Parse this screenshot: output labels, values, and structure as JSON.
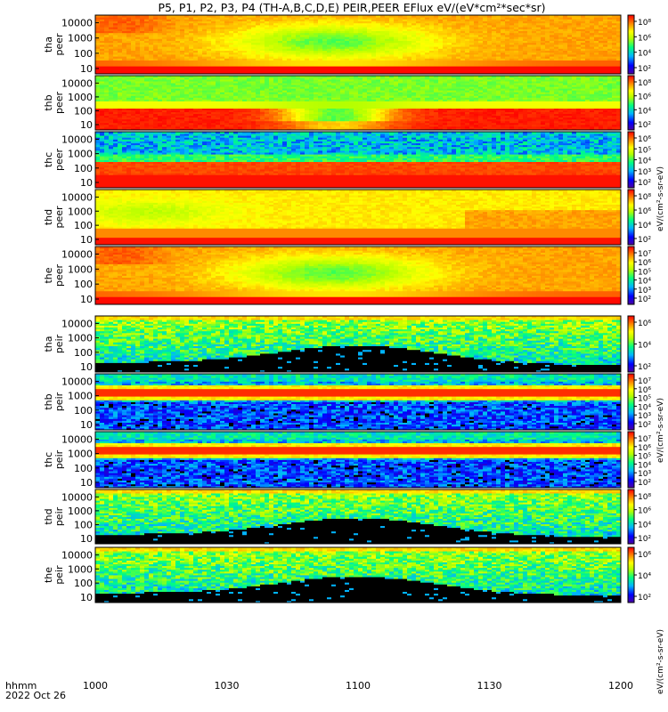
{
  "chart_data": {
    "type": "heatmap",
    "title": "P5, P1, P2, P3, P4 (TH-A,B,C,D,E) PEIR,PEER EFlux eV/(eV*cm²*sec*sr)",
    "time_axis": {
      "ticks": [
        "1000",
        "1030",
        "1100",
        "1130",
        "1200"
      ],
      "start_label": "hhmm",
      "date_label": "2022 Oct 26"
    },
    "colorbar_labels": [
      "eV/(cm²-s-sr-eV)",
      "eV/(cm²-s-sr-eV)",
      "eV/(cm²-s-sr-eV)"
    ],
    "panels": [
      {
        "probe": "tha",
        "species": "peer",
        "yticks": [
          "10000",
          "1000",
          "100",
          "10"
        ],
        "cbar_ticks": [
          "10⁸",
          "10⁶",
          "10⁴",
          "10²"
        ],
        "pattern": "peer_hot"
      },
      {
        "probe": "thb",
        "species": "peer",
        "yticks": [
          "10000",
          "1000",
          "100",
          "10"
        ],
        "cbar_ticks": [
          "10⁸",
          "10⁶",
          "10⁴",
          "10²"
        ],
        "pattern": "peer_lowband"
      },
      {
        "probe": "thc",
        "species": "peer",
        "yticks": [
          "10000",
          "1000",
          "100",
          "10"
        ],
        "cbar_ticks": [
          "10⁶",
          "10⁵",
          "10⁴",
          "10³",
          "10²"
        ],
        "pattern": "peer_noisy"
      },
      {
        "probe": "thd",
        "species": "peer",
        "yticks": [
          "10000",
          "1000",
          "100",
          "10"
        ],
        "cbar_ticks": [
          "10⁸",
          "10⁶",
          "10⁴",
          "10²"
        ],
        "pattern": "peer_warm"
      },
      {
        "probe": "the",
        "species": "peer",
        "yticks": [
          "10000",
          "1000",
          "100",
          "10"
        ],
        "cbar_ticks": [
          "10⁷",
          "10⁶",
          "10⁵",
          "10⁴",
          "10³",
          "10²"
        ],
        "pattern": "peer_hot"
      },
      {
        "probe": "tha",
        "species": "peir",
        "yticks": [
          "10000",
          "1000",
          "100",
          "10"
        ],
        "cbar_ticks": [
          "10⁶",
          "10⁴",
          "10²"
        ],
        "pattern": "peir_black"
      },
      {
        "probe": "thb",
        "species": "peir",
        "yticks": [
          "10000",
          "1000",
          "100",
          "10"
        ],
        "cbar_ticks": [
          "10⁷",
          "10⁶",
          "10⁵",
          "10⁴",
          "10³",
          "10²"
        ],
        "pattern": "peir_band"
      },
      {
        "probe": "thc",
        "species": "peir",
        "yticks": [
          "10000",
          "1000",
          "100",
          "10"
        ],
        "cbar_ticks": [
          "10⁷",
          "10⁶",
          "10⁵",
          "10⁴",
          "10³",
          "10²"
        ],
        "pattern": "peir_band"
      },
      {
        "probe": "thd",
        "species": "peir",
        "yticks": [
          "10000",
          "1000",
          "100",
          "10"
        ],
        "cbar_ticks": [
          "10⁸",
          "10⁶",
          "10⁴",
          "10²"
        ],
        "pattern": "peir_black"
      },
      {
        "probe": "the",
        "species": "peir",
        "yticks": [
          "10000",
          "1000",
          "100",
          "10"
        ],
        "cbar_ticks": [
          "10⁶",
          "10⁴",
          "10²"
        ],
        "pattern": "peir_black"
      }
    ]
  }
}
